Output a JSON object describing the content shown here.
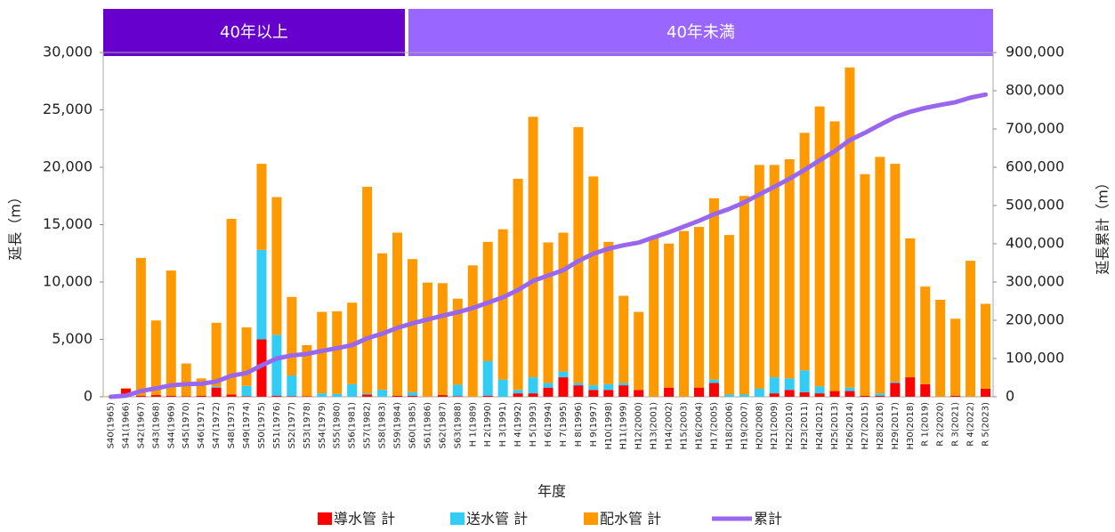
{
  "chart_data": {
    "type": "bar",
    "banners": [
      {
        "label": "40年以上",
        "color": "#6600cc"
      },
      {
        "label": "40年未満",
        "color": "#9966ff"
      }
    ],
    "xlabel": "年度",
    "ylabel": "延長（m）",
    "y2label": "延長累計（m）",
    "categories": [
      "S40(1965)",
      "S41(1966)",
      "S42(1967)",
      "S43(1968)",
      "S44(1969)",
      "S45(1970)",
      "S46(1971)",
      "S47(1972)",
      "S48(1973)",
      "S49(1974)",
      "S50(1975)",
      "S51(1976)",
      "S52(1977)",
      "S53(1978)",
      "S54(1979)",
      "S55(1980)",
      "S56(1981)",
      "S57(1982)",
      "S58(1983)",
      "S59(1984)",
      "S60(1985)",
      "S61(1986)",
      "S62(1987)",
      "S63(1988)",
      "H 1(1989)",
      "H 2(1990)",
      "H 3(1991)",
      "H 4(1992)",
      "H 5(1993)",
      "H 6(1994)",
      "H 7(1995)",
      "H 8(1996)",
      "H 9(1997)",
      "H10(1998)",
      "H11(1999)",
      "H12(2000)",
      "H13(2001)",
      "H14(2002)",
      "H15(2003)",
      "H16(2004)",
      "H17(2005)",
      "H18(2006)",
      "H19(2007)",
      "H20(2008)",
      "H21(2009)",
      "H22(2010)",
      "H23(2011)",
      "H24(2012)",
      "H25(2013)",
      "H26(2014)",
      "H27(2015)",
      "H28(2016)",
      "H29(2017)",
      "H30(2018)",
      "R 1(2019)",
      "R 2(2020)",
      "R 3(2021)",
      "R 4(2022)",
      "R 5(2023)"
    ],
    "series": [
      {
        "name": "導水管 計",
        "type": "bar",
        "color": "#ff0000",
        "values": [
          0,
          700,
          100,
          150,
          100,
          50,
          100,
          800,
          200,
          50,
          5000,
          100,
          50,
          50,
          0,
          0,
          0,
          200,
          0,
          100,
          100,
          0,
          150,
          50,
          0,
          100,
          0,
          300,
          300,
          800,
          1700,
          1000,
          600,
          600,
          1000,
          600,
          0,
          800,
          0,
          800,
          1200,
          0,
          0,
          0,
          300,
          600,
          400,
          300,
          500,
          500,
          100,
          100,
          1200,
          1700,
          1100,
          0,
          100,
          0,
          700
        ]
      },
      {
        "name": "送水管 計",
        "type": "bar",
        "color": "#33ccf5",
        "values": [
          0,
          0,
          0,
          0,
          0,
          0,
          0,
          100,
          0,
          900,
          7800,
          5300,
          1800,
          0,
          300,
          250,
          1100,
          100,
          600,
          0,
          300,
          0,
          0,
          1000,
          0,
          3000,
          1500,
          300,
          1400,
          400,
          500,
          200,
          400,
          500,
          200,
          0,
          0,
          0,
          0,
          0,
          300,
          200,
          200,
          700,
          1400,
          1000,
          1900,
          600,
          0,
          300,
          0,
          200,
          100,
          0,
          0,
          0,
          0,
          0,
          0
        ]
      },
      {
        "name": "配水管 計",
        "type": "bar",
        "color": "#ff9900",
        "values": [
          50,
          50,
          12000,
          6500,
          10900,
          2850,
          1500,
          5550,
          15300,
          5100,
          7500,
          12000,
          6850,
          4450,
          7100,
          7200,
          7100,
          18000,
          11900,
          14200,
          11600,
          9950,
          9750,
          7500,
          11450,
          10400,
          13100,
          18400,
          22700,
          12250,
          12100,
          22300,
          18200,
          12400,
          7600,
          6800,
          13900,
          12550,
          14450,
          14000,
          15800,
          13900,
          17300,
          19500,
          18500,
          19100,
          20700,
          24400,
          23500,
          27900,
          19300,
          20600,
          19000,
          12100,
          8500,
          8450,
          6700,
          11850,
          7400
        ]
      },
      {
        "name": "累計",
        "type": "line",
        "axis": "y2",
        "color": "#9966ee",
        "values": [
          0,
          3000,
          15000,
          22000,
          30000,
          33000,
          34000,
          40000,
          55000,
          62000,
          82000,
          100000,
          108000,
          112000,
          120000,
          127000,
          135000,
          153000,
          165000,
          180000,
          192000,
          202000,
          212000,
          221000,
          232000,
          246000,
          260000,
          279000,
          303000,
          317000,
          331000,
          355000,
          374000,
          387000,
          396000,
          403000,
          417000,
          430000,
          445000,
          460000,
          477000,
          491000,
          508000,
          529000,
          549000,
          570000,
          593000,
          618000,
          642000,
          671000,
          690000,
          711000,
          731000,
          745000,
          755000,
          763000,
          770000,
          782000,
          790000
        ]
      }
    ],
    "ylim": [
      0,
      30000
    ],
    "yticks": [
      0,
      {
        "value": 5000,
        "label": "5,000"
      },
      {
        "value": 10000,
        "label": "10,000"
      },
      {
        "value": 15000,
        "label": "15,000"
      },
      {
        "value": 20000,
        "label": "20,000"
      },
      {
        "value": 25000,
        "label": "25,000"
      },
      {
        "value": 30000,
        "label": "30,000"
      }
    ],
    "y2lim": [
      0,
      900000
    ],
    "y2ticks": [
      0,
      {
        "value": 100000,
        "label": "100,000"
      },
      {
        "value": 200000,
        "label": "200,000"
      },
      {
        "value": 300000,
        "label": "300,000"
      },
      {
        "value": 400000,
        "label": "400,000"
      },
      {
        "value": 500000,
        "label": "500,000"
      },
      {
        "value": 600000,
        "label": "600,000"
      },
      {
        "value": 700000,
        "label": "700,000"
      },
      {
        "value": 800000,
        "label": "800,000"
      },
      {
        "value": 900000,
        "label": "900,000"
      }
    ],
    "legend": "bottom"
  }
}
